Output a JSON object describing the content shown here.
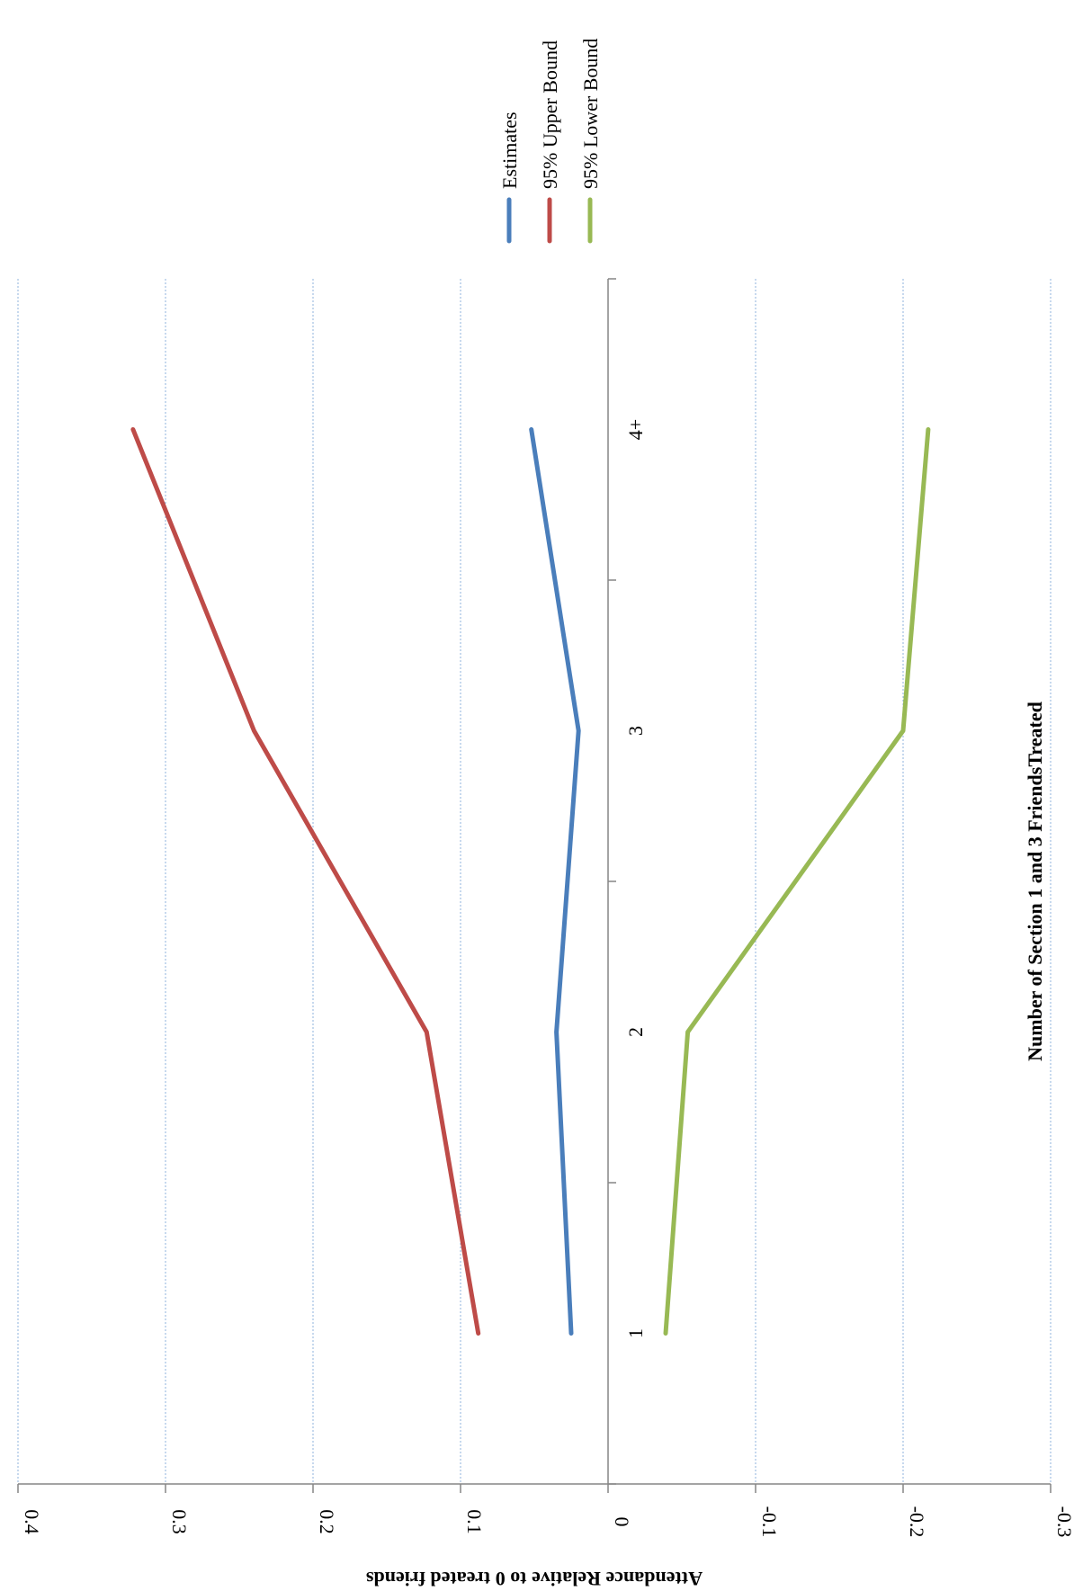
{
  "chart_data": {
    "type": "line",
    "categories": [
      "1",
      "2",
      "3",
      "4+"
    ],
    "series": [
      {
        "name": "Estimates",
        "values": [
          0.025,
          0.035,
          0.02,
          0.052
        ],
        "color": "#4a7ebb"
      },
      {
        "name": "95% Upper Bound",
        "values": [
          0.088,
          0.123,
          0.24,
          0.322
        ],
        "color": "#be4b48"
      },
      {
        "name": "95% Lower Bound",
        "values": [
          -0.039,
          -0.054,
          -0.2,
          -0.217
        ],
        "color": "#98b954"
      }
    ],
    "xlabel": "Number of Section 1 and 3 FriendsTreated",
    "ylabel": "Attendance Relative to 0 treated friends",
    "ylim": [
      -0.3,
      0.4
    ],
    "yticks": [
      "0.4",
      "0.3",
      "0.2",
      "0.1",
      "0",
      "-0.1",
      "-0.2",
      "-0.3"
    ],
    "grid": true,
    "legend_position": "top",
    "orientation": "rotated 90° clockwise"
  }
}
